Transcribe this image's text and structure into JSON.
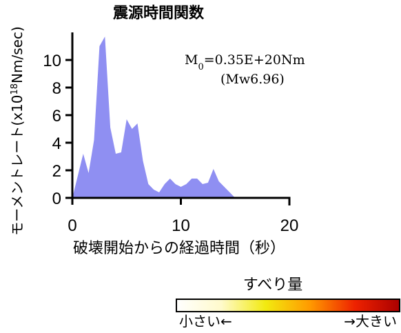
{
  "chart_data": {
    "type": "area",
    "title": "震源時間関数",
    "xlabel": "破壊開始からの経過時間（秒）",
    "ylabel_main": "モーメントレート(x10",
    "ylabel_sup": "18",
    "ylabel_end": "Nm/sec)",
    "xlim": [
      0,
      20
    ],
    "ylim": [
      0,
      12
    ],
    "xticks": [
      "0",
      "10",
      "20"
    ],
    "yticks": [
      "0",
      "2",
      "4",
      "6",
      "8",
      "10"
    ],
    "fill_color": "#8f8ff2",
    "series": [
      {
        "x": [
          0,
          0.5,
          1.0,
          1.5,
          2.0,
          2.5,
          3.0,
          3.5,
          4.0,
          4.5,
          5.0,
          5.5,
          6.0,
          6.5,
          7.0,
          7.5,
          8.0,
          8.5,
          9.0,
          9.5,
          10.0,
          10.5,
          11.0,
          11.5,
          12.0,
          12.5,
          13.0,
          13.5,
          14.0,
          14.5,
          15.0
        ],
        "y": [
          0,
          1.6,
          3.2,
          1.8,
          4.2,
          11.0,
          11.7,
          5.1,
          3.2,
          3.3,
          5.7,
          5.0,
          5.4,
          2.7,
          1.0,
          0.6,
          0.4,
          1.0,
          1.4,
          1.0,
          0.8,
          1.0,
          1.4,
          1.4,
          1.0,
          1.1,
          2.1,
          1.2,
          0.8,
          0.4,
          0
        ]
      }
    ],
    "annotation_line1_base": "M",
    "annotation_line1_sub": "0",
    "annotation_line1_rest": "=0.35E+20Nm",
    "annotation_line2": "(Mw6.96)"
  },
  "colorbar": {
    "title": "すべり量",
    "left_label": "小さい←",
    "right_label": "→大きい",
    "stops": [
      "#ffffff",
      "#fffacc",
      "#f2ea10",
      "#ff9900",
      "#ee2200",
      "#aa0000"
    ]
  }
}
